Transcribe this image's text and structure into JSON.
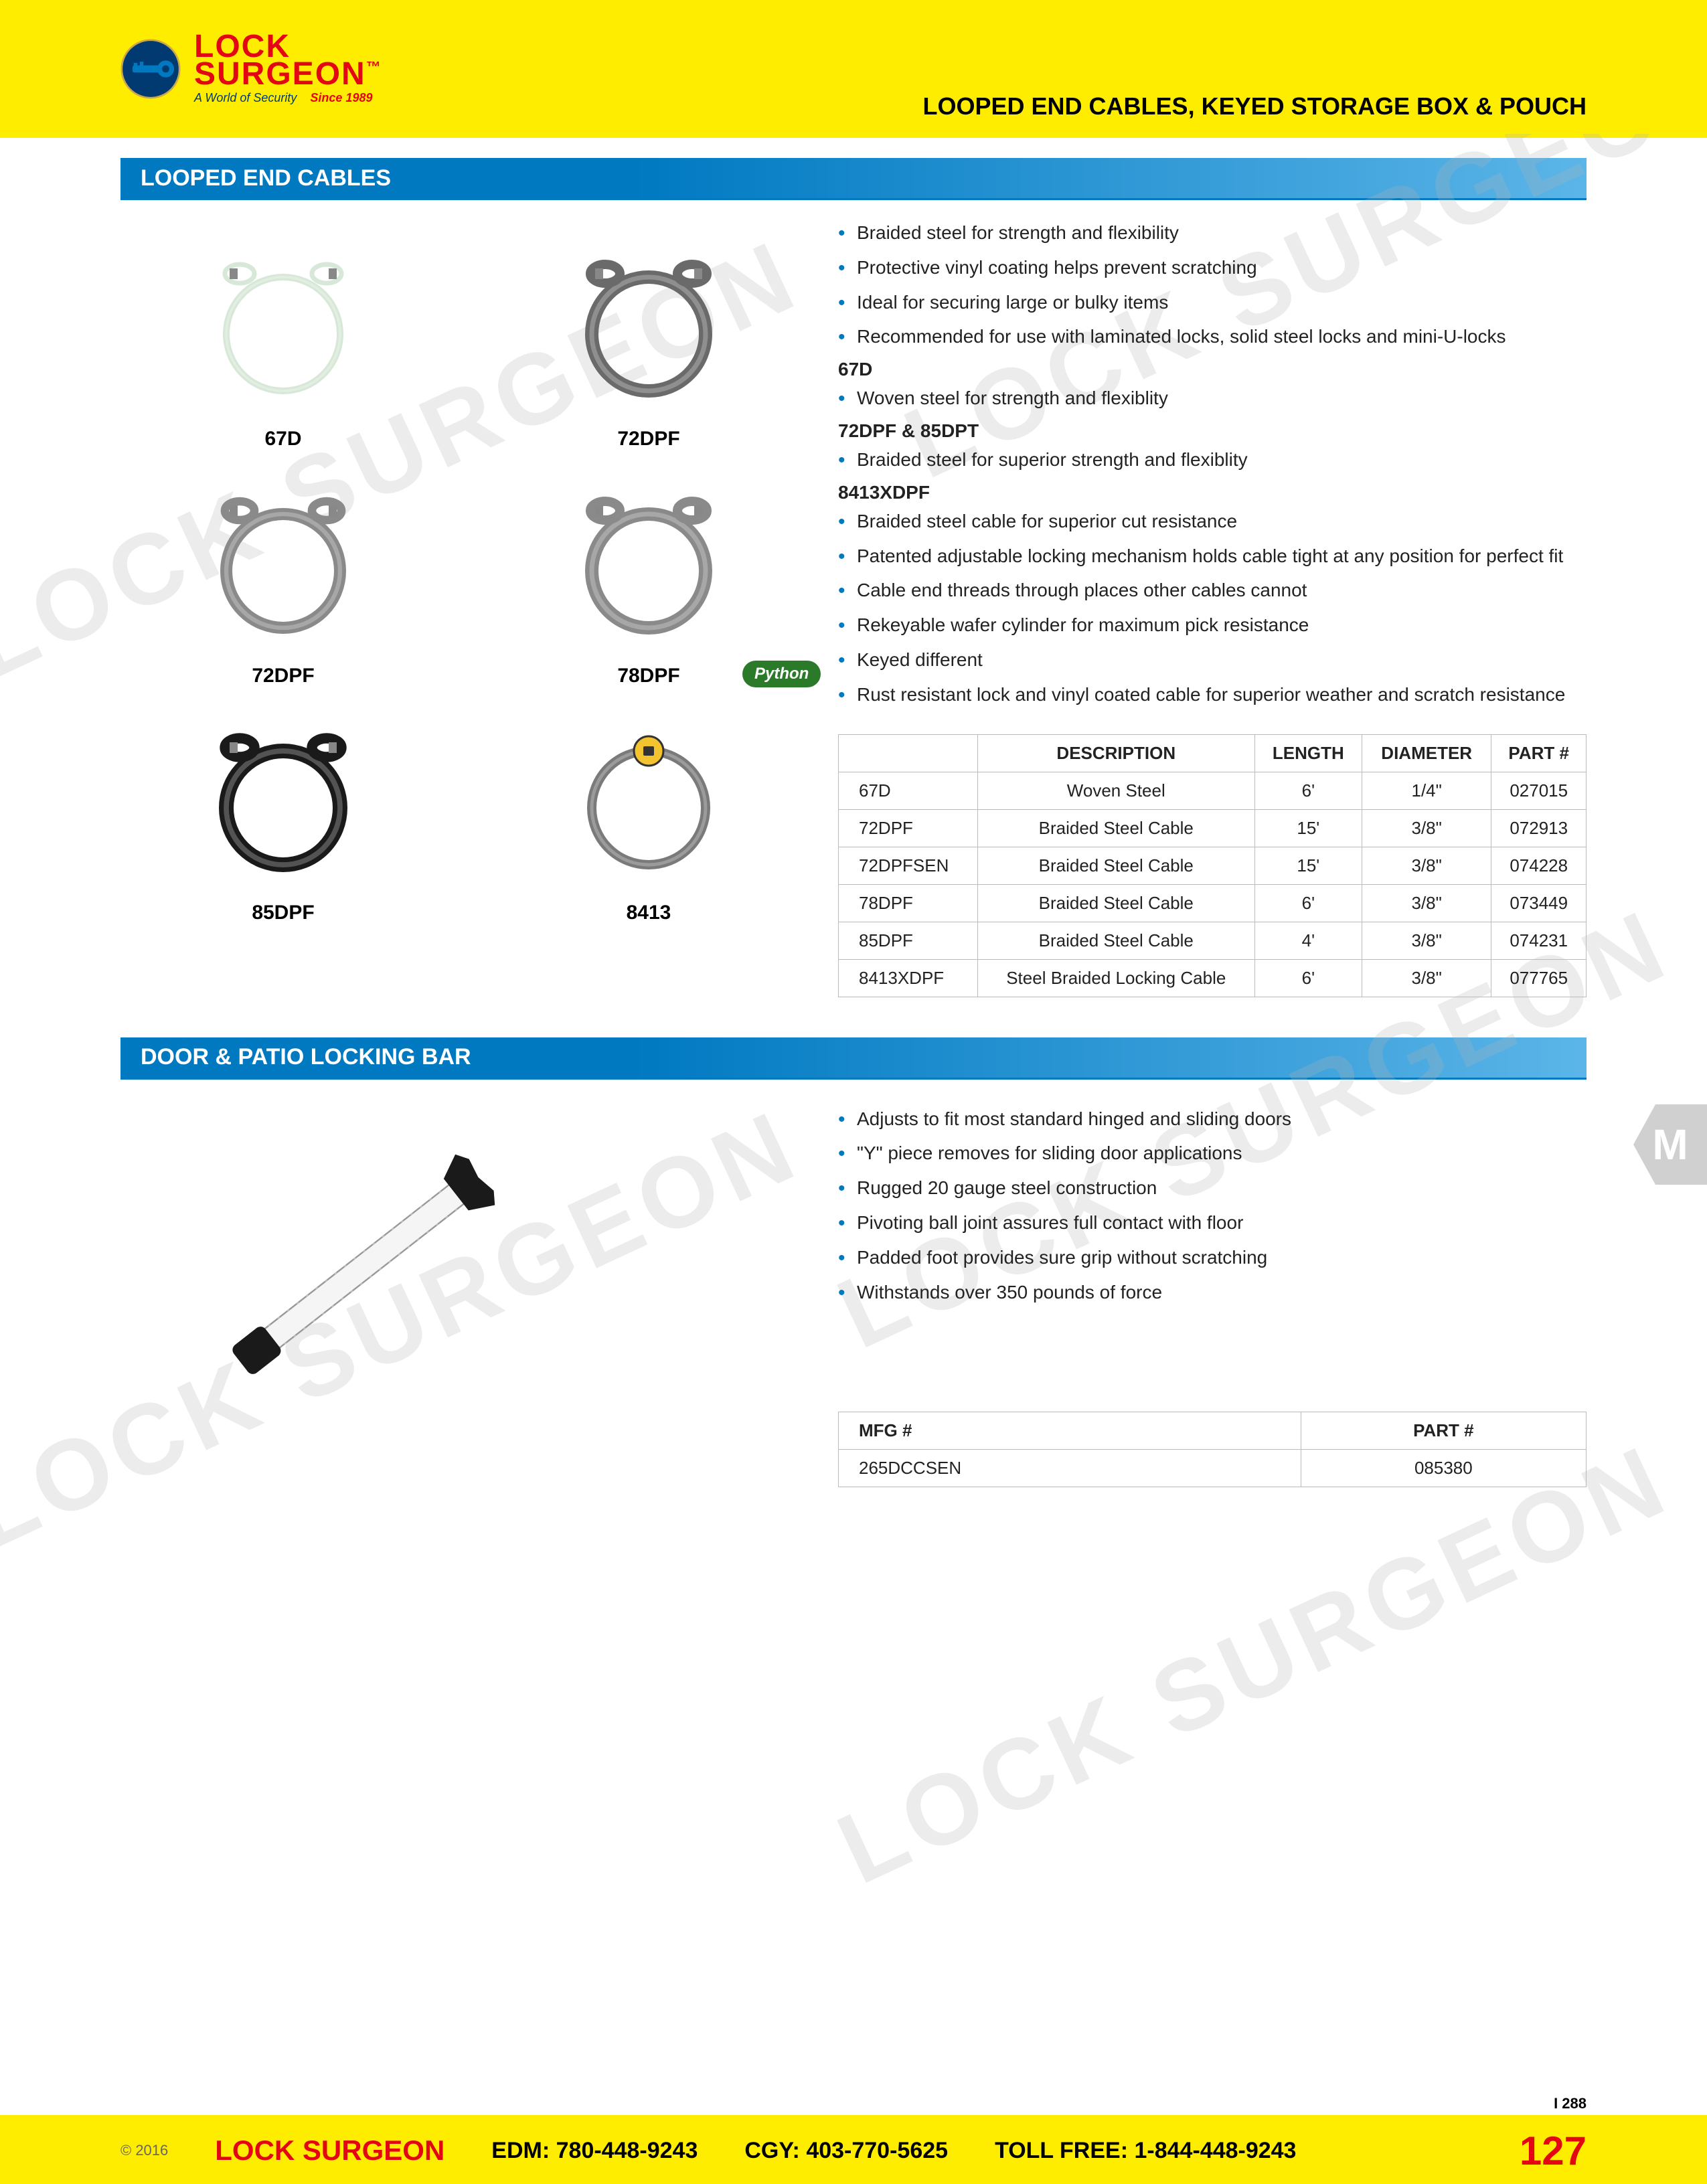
{
  "header": {
    "logo_lock": "LOCK",
    "logo_surgeon": "SURGEON",
    "logo_world": "A World of Security",
    "logo_since": "Since 1989",
    "logo_tm": "™",
    "title": "LOOPED END CABLES, KEYED STORAGE BOX & POUCH"
  },
  "side_tab": "M",
  "watermark_text": "LOCK SURGEON",
  "section1": {
    "title": "LOOPED END CABLES",
    "products": [
      {
        "label": "67D",
        "color": "#d8e8d8",
        "thickness": 10
      },
      {
        "label": "72DPF",
        "color": "#6a6a6a",
        "thickness": 20
      },
      {
        "label": "72DPF",
        "color": "#8a8a8a",
        "thickness": 18
      },
      {
        "label": "78DPF",
        "color": "#8a8a8a",
        "thickness": 20
      },
      {
        "label": "85DPF",
        "color": "#1a1a1a",
        "thickness": 22
      },
      {
        "label": "8413",
        "color": "#7a7a7a",
        "thickness": 14,
        "has_lock": true
      }
    ],
    "badge_label": "Python",
    "bullets_top": [
      "Braided steel for strength and flexibility",
      "Protective vinyl coating helps prevent scratching",
      "Ideal for securing large or bulky items",
      "Recommended for use with laminated locks, solid steel locks and mini-U-locks"
    ],
    "sub1_head": "67D",
    "sub1_bullets": [
      "Woven steel for strength and flexiblity"
    ],
    "sub2_head": "72DPF & 85DPT",
    "sub2_bullets": [
      "Braided steel for superior strength and flexiblity"
    ],
    "sub3_head": "8413XDPF",
    "sub3_bullets": [
      "Braided steel cable for superior cut resistance",
      "Patented adjustable locking mechanism holds cable tight at any position for perfect fit",
      "Cable end threads through places other cables cannot",
      "Rekeyable wafer cylinder for maximum pick resistance",
      "Keyed different",
      "Rust resistant lock and vinyl coated cable for superior weather and scratch resistance"
    ],
    "table": {
      "columns": [
        "",
        "DESCRIPTION",
        "LENGTH",
        "DIAMETER",
        "PART #"
      ],
      "rows": [
        [
          "67D",
          "Woven Steel",
          "6'",
          "1/4\"",
          "027015"
        ],
        [
          "72DPF",
          "Braided Steel Cable",
          "15'",
          "3/8\"",
          "072913"
        ],
        [
          "72DPFSEN",
          "Braided Steel Cable",
          "15'",
          "3/8\"",
          "074228"
        ],
        [
          "78DPF",
          "Braided Steel Cable",
          "6'",
          "3/8\"",
          "073449"
        ],
        [
          "85DPF",
          "Braided Steel Cable",
          "4'",
          "3/8\"",
          "074231"
        ],
        [
          "8413XDPF",
          "Steel Braided Locking Cable",
          "6'",
          "3/8\"",
          "077765"
        ]
      ]
    }
  },
  "section2": {
    "title": "DOOR & PATIO LOCKING BAR",
    "bullets": [
      "Adjusts to fit most standard hinged and sliding doors",
      "\"Y\" piece removes for sliding door applications",
      "Rugged 20 gauge steel construction",
      "Pivoting ball joint assures full contact with floor",
      "Padded foot provides sure grip without scratching",
      "Withstands over 350 pounds of force"
    ],
    "table": {
      "columns": [
        "MFG #",
        "PART #"
      ],
      "rows": [
        [
          "265DCCSEN",
          "085380"
        ]
      ]
    }
  },
  "footer": {
    "copyright": "© 2016",
    "brand": "LOCK SURGEON",
    "edm_label": "EDM:",
    "edm_phone": "780-448-9243",
    "cgy_label": "CGY:",
    "cgy_phone": "403-770-5625",
    "toll_label": "TOLL FREE:",
    "toll_phone": "1-844-448-9243",
    "page": "127",
    "code": "I  288"
  }
}
